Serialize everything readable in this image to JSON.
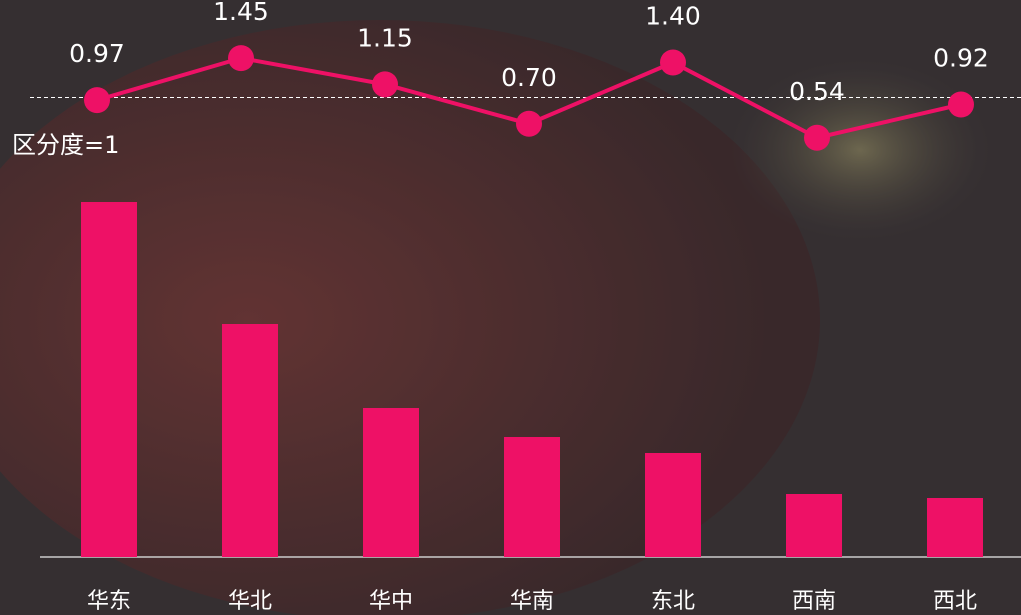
{
  "chart_data": {
    "type": "bar",
    "categories": [
      "华东",
      "华北",
      "华中",
      "华南",
      "东北",
      "西南",
      "西北"
    ],
    "ylim": [
      0,
      400
    ],
    "y2lim": [
      0,
      2
    ],
    "reference_line": {
      "value": 1,
      "label": "区分度=1"
    },
    "series": [
      {
        "type": "bar",
        "color": "#ee1166",
        "values": [
          355,
          233,
          149,
          120,
          104,
          63,
          59
        ]
      },
      {
        "type": "line",
        "axis": "y2",
        "color": "#ee1166",
        "values": [
          0.97,
          1.45,
          1.15,
          0.7,
          1.4,
          0.54,
          0.92
        ],
        "value_labels": [
          "0.97",
          "1.45",
          "1.15",
          "0.70",
          "1.40",
          "0.54",
          "0.92"
        ]
      }
    ]
  }
}
